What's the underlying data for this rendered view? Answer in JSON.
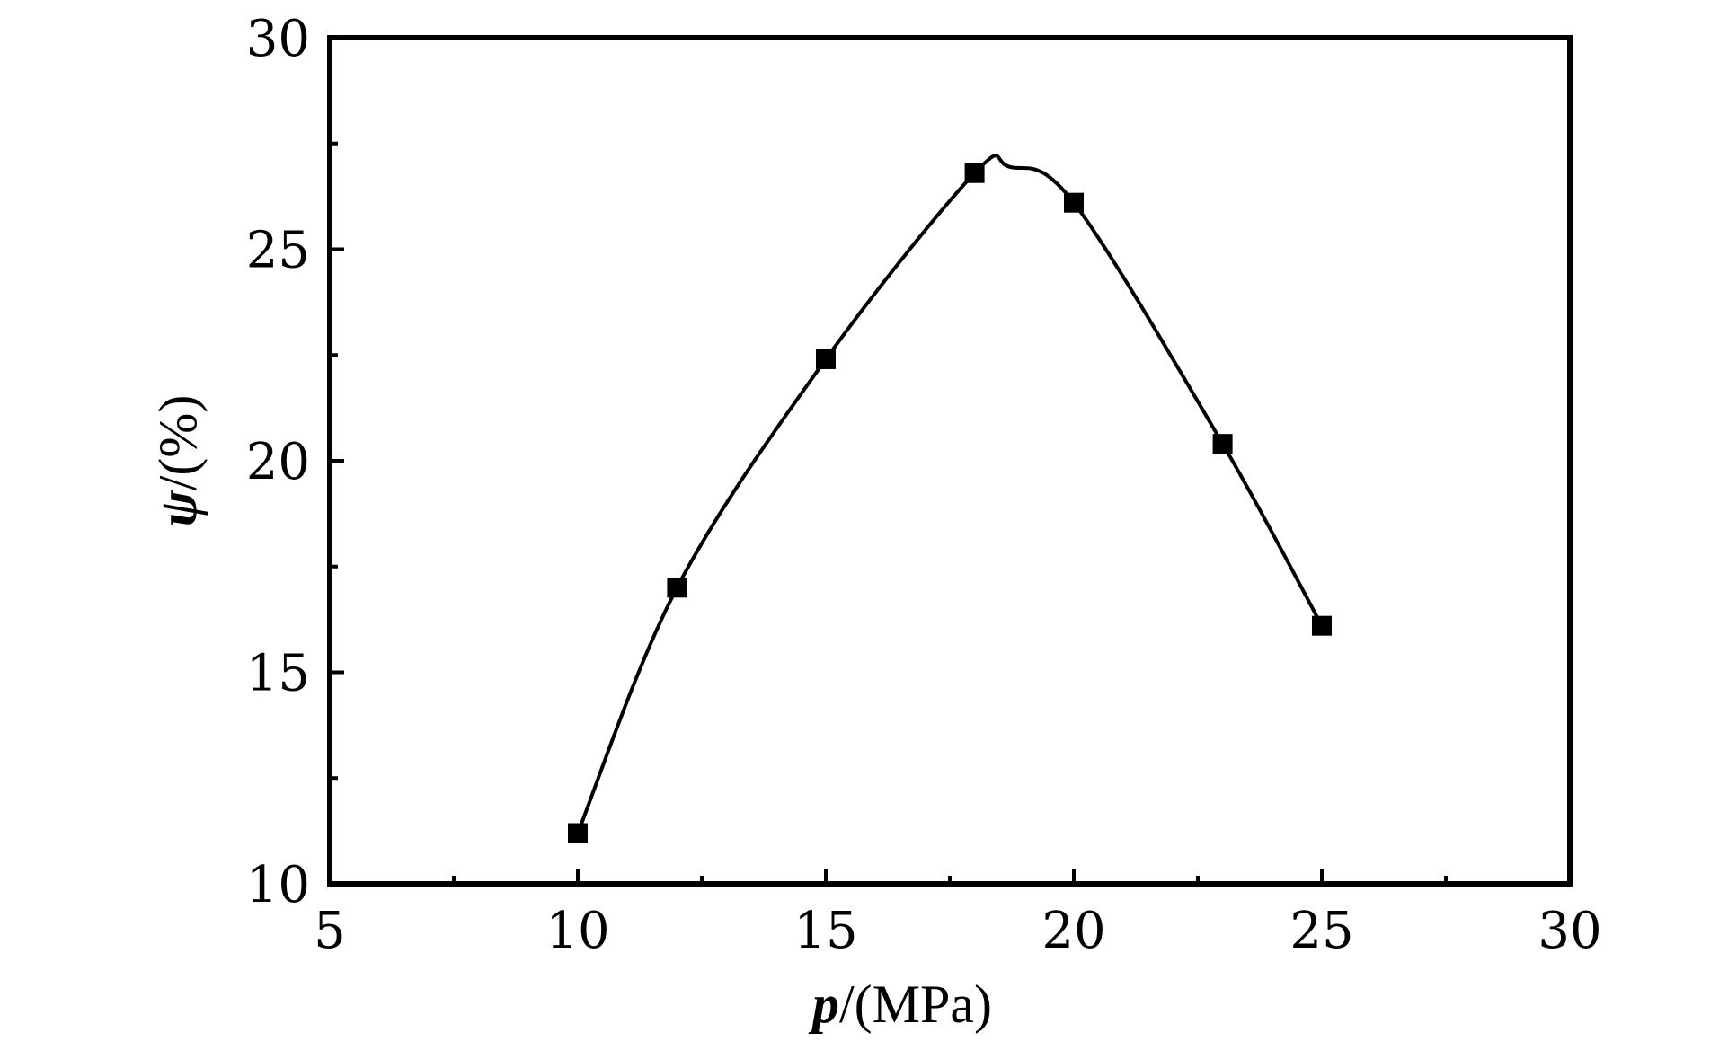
{
  "chart_data": {
    "type": "line",
    "x": [
      10,
      12,
      15,
      18,
      20,
      23,
      25
    ],
    "y": [
      11.2,
      17.0,
      22.4,
      26.8,
      26.1,
      20.4,
      16.1
    ],
    "curve_peak": {
      "x": 18.7,
      "y": 26.95
    },
    "xlim": [
      5,
      30
    ],
    "ylim": [
      10,
      30
    ],
    "x_ticks": [
      5,
      10,
      15,
      20,
      25,
      30
    ],
    "x_tick_labels": [
      "5",
      "10",
      "15",
      "20",
      "25",
      "30"
    ],
    "y_ticks": [
      10,
      15,
      20,
      25,
      30
    ],
    "y_tick_labels": [
      "10",
      "15",
      "20",
      "25",
      "30"
    ],
    "xlabel": {
      "symbol": "p",
      "unit": "/(MPa)"
    },
    "ylabel": {
      "symbol": "ψ",
      "unit": "/(%)"
    },
    "marker": "square",
    "grid": false,
    "legend": "none",
    "colors": {
      "line": "#000000",
      "marker": "#000000",
      "frame": "#000000"
    }
  }
}
